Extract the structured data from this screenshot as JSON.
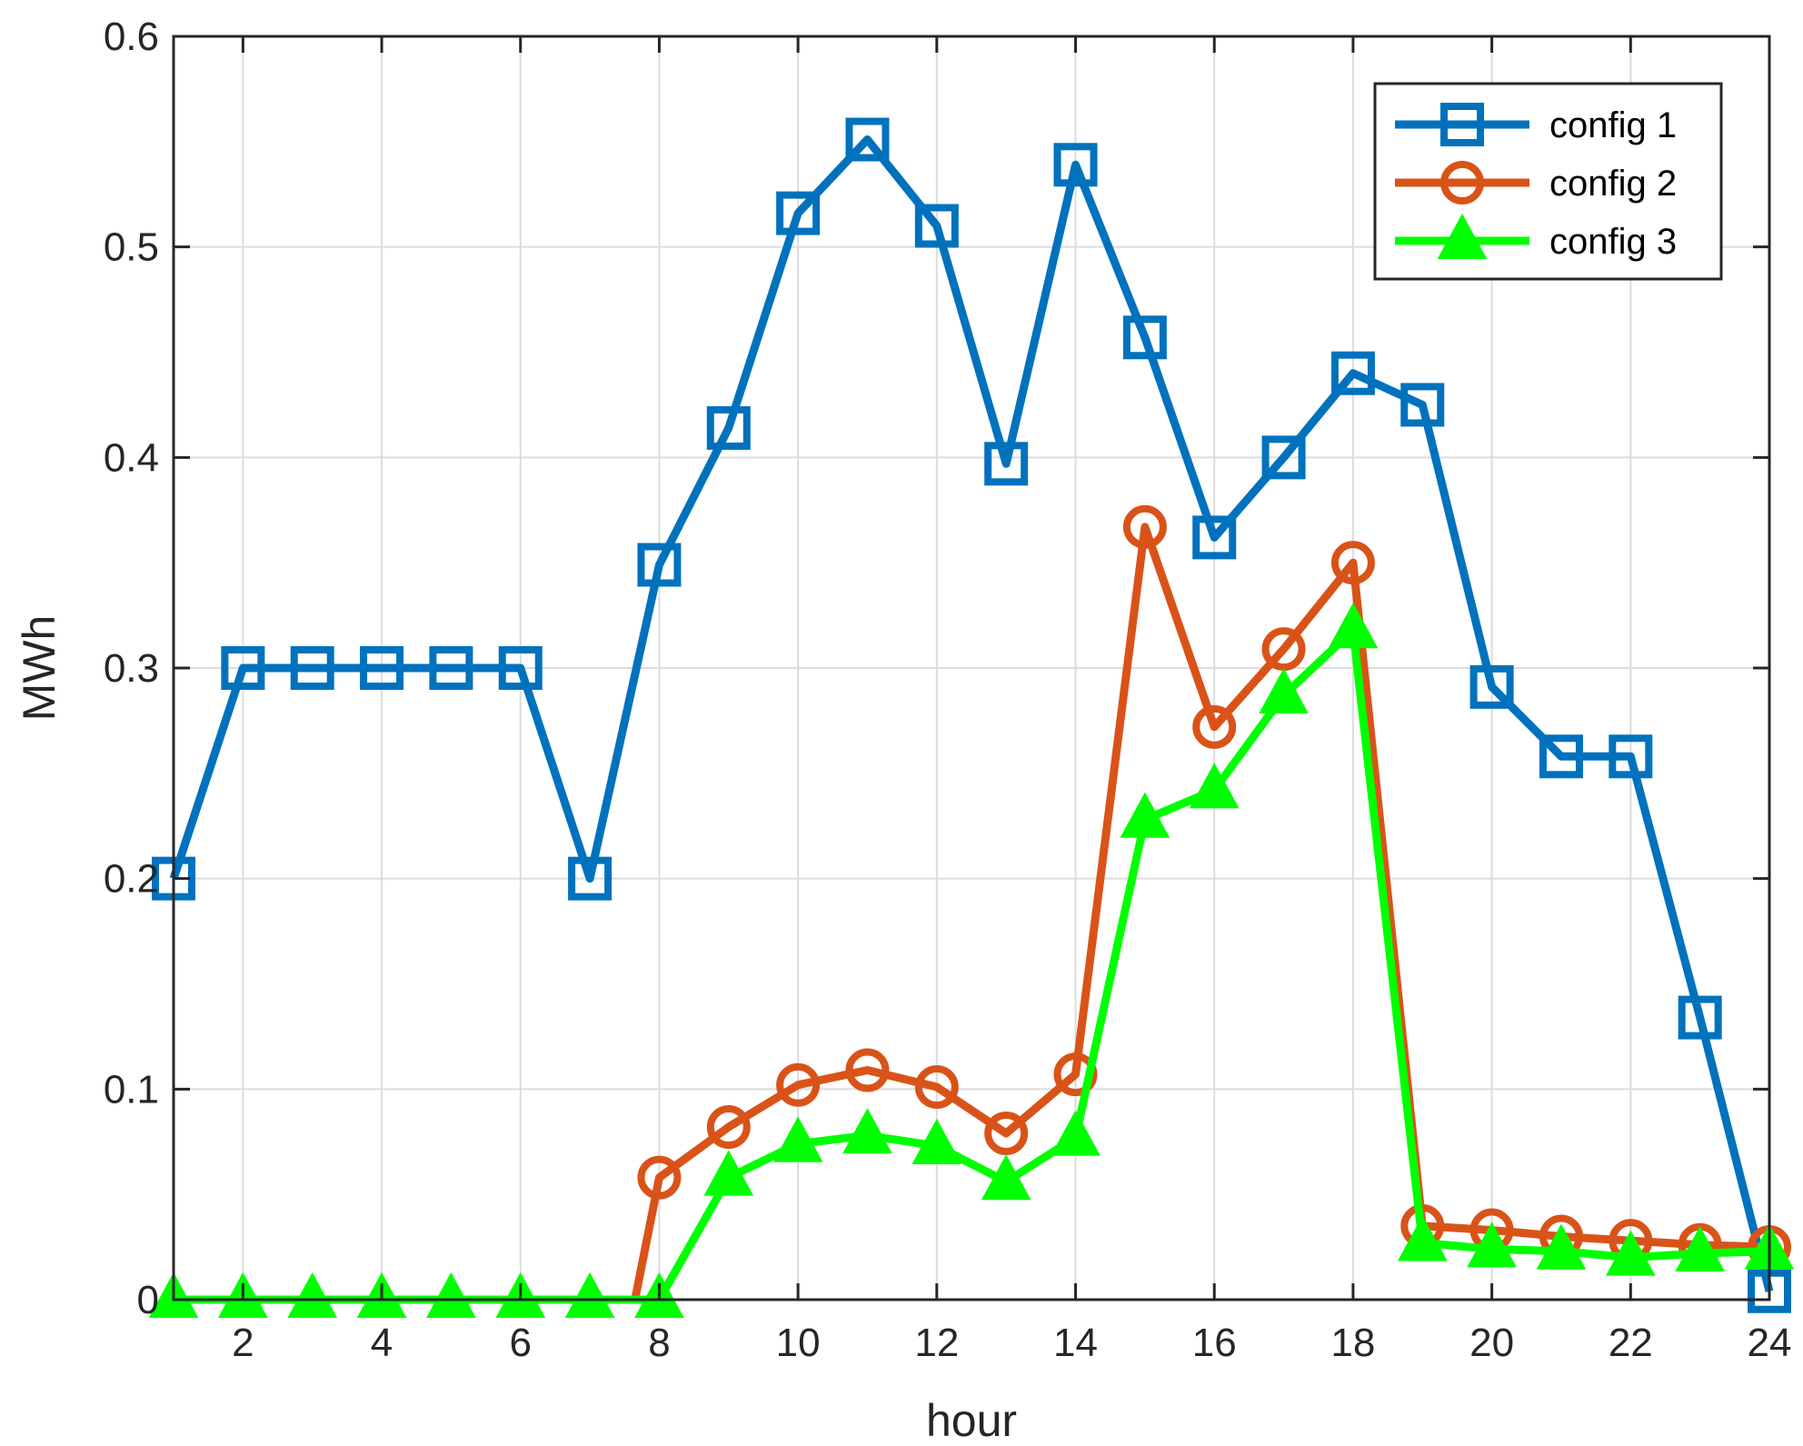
{
  "chart_data": {
    "type": "line",
    "xlabel": "hour",
    "ylabel": "MWh",
    "xlim": [
      1,
      24
    ],
    "ylim": [
      0,
      0.6
    ],
    "xticks": [
      2,
      4,
      6,
      8,
      10,
      12,
      14,
      16,
      18,
      20,
      22,
      24
    ],
    "yticks": [
      0,
      0.1,
      0.2,
      0.3,
      0.4,
      0.5,
      0.6
    ],
    "ytick_labels": [
      "0",
      "0.1",
      "0.2",
      "0.3",
      "0.4",
      "0.5",
      "0.6"
    ],
    "grid": true,
    "legend_position": "top-right",
    "x": [
      1,
      2,
      3,
      4,
      5,
      6,
      7,
      8,
      9,
      10,
      11,
      12,
      13,
      14,
      15,
      16,
      17,
      18,
      19,
      20,
      21,
      22,
      23,
      24
    ],
    "series": [
      {
        "name": "config 1",
        "color": "#0072BD",
        "marker": "square",
        "values": [
          0.2,
          0.3,
          0.3,
          0.3,
          0.3,
          0.3,
          0.2,
          0.349,
          0.414,
          0.516,
          0.551,
          0.51,
          0.397,
          0.539,
          0.457,
          0.362,
          0.4,
          0.44,
          0.425,
          0.291,
          0.258,
          0.258,
          0.134,
          0.004
        ]
      },
      {
        "name": "config 2",
        "color": "#D95319",
        "marker": "circle",
        "x": [
          1,
          2,
          3,
          4,
          5,
          6,
          7,
          7.65,
          8,
          9,
          10,
          11,
          12,
          13,
          14,
          15,
          16,
          17,
          18,
          19,
          20,
          21,
          22,
          23,
          24
        ],
        "values": [
          0,
          0,
          0,
          0,
          0,
          0,
          0,
          0,
          0.058,
          0.082,
          0.102,
          0.109,
          0.101,
          0.079,
          0.107,
          0.367,
          0.272,
          0.309,
          0.35,
          0.035,
          0.033,
          0.03,
          0.028,
          0.026,
          0.025
        ],
        "marker_from": 8
      },
      {
        "name": "config 3",
        "color": "#00FF00",
        "marker": "triangle",
        "values": [
          0,
          0,
          0,
          0,
          0,
          0,
          0,
          0,
          0.058,
          0.074,
          0.078,
          0.073,
          0.056,
          0.077,
          0.228,
          0.242,
          0.287,
          0.318,
          0.027,
          0.024,
          0.023,
          0.02,
          0.022,
          0.023
        ]
      }
    ]
  }
}
